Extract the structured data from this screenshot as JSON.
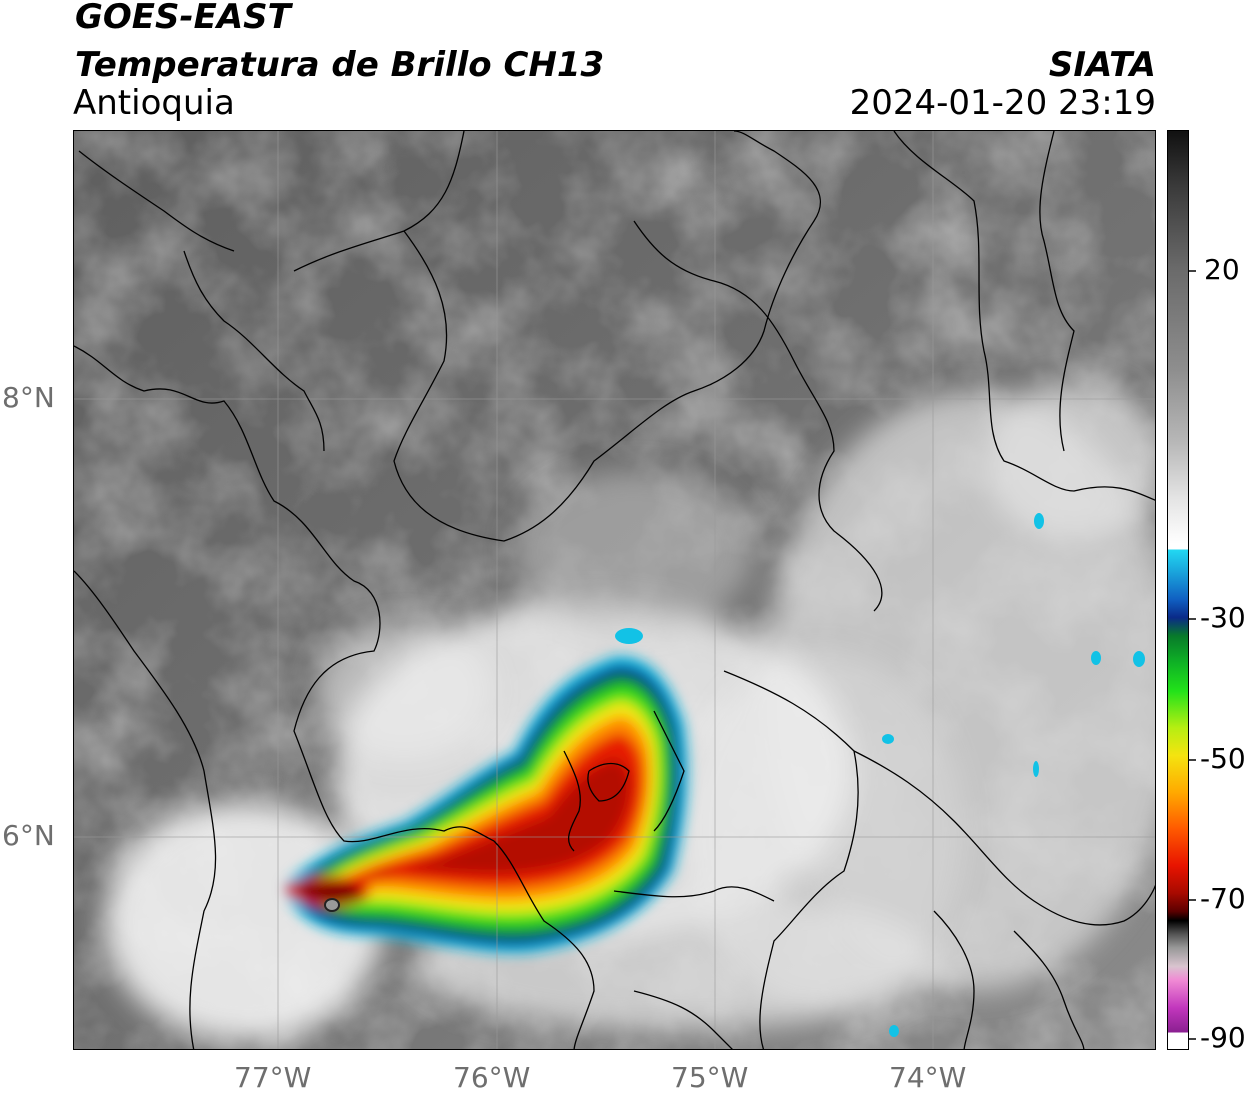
{
  "header": {
    "satellite": "GOES-EAST",
    "product": "Temperatura de Brillo CH13",
    "region": "Antioquia",
    "agency": "SIATA",
    "datetime": "2024-01-20 23:19"
  },
  "map": {
    "lat_ticks": [
      "8°N",
      "6°N"
    ],
    "lon_ticks": [
      "77°W",
      "76°W",
      "75°W",
      "74°W"
    ],
    "extent": {
      "lon_min": -77.93,
      "lon_max": -72.97,
      "lat_min": 5.0,
      "lat_max": 9.23
    }
  },
  "colorbar": {
    "ticks": [
      "20",
      "-30",
      "-50",
      "-70",
      "-90"
    ],
    "range": [
      -90,
      40
    ]
  },
  "colors": {
    "background_gray": "#6e6e6e",
    "cold_core": "#c40a00",
    "coast_lines": "#000000"
  }
}
